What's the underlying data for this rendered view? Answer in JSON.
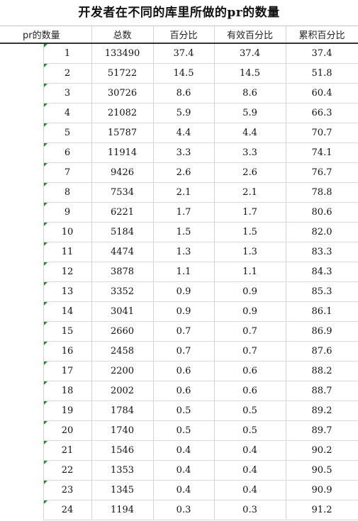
{
  "title": "开发者在不同的库里所做的pr的数量",
  "columns": [
    "pr的数量",
    "总数",
    "百分比",
    "有效百分比",
    "累积百分比"
  ],
  "rows": [
    [
      "1",
      "133490",
      "37.4",
      "37.4",
      "37.4"
    ],
    [
      "2",
      "51722",
      "14.5",
      "14.5",
      "51.8"
    ],
    [
      "3",
      "30726",
      "8.6",
      "8.6",
      "60.4"
    ],
    [
      "4",
      "21082",
      "5.9",
      "5.9",
      "66.3"
    ],
    [
      "5",
      "15787",
      "4.4",
      "4.4",
      "70.7"
    ],
    [
      "6",
      "11914",
      "3.3",
      "3.3",
      "74.1"
    ],
    [
      "7",
      "9426",
      "2.6",
      "2.6",
      "76.7"
    ],
    [
      "8",
      "7534",
      "2.1",
      "2.1",
      "78.8"
    ],
    [
      "9",
      "6221",
      "1.7",
      "1.7",
      "80.6"
    ],
    [
      "10",
      "5184",
      "1.5",
      "1.5",
      "82.0"
    ],
    [
      "11",
      "4474",
      "1.3",
      "1.3",
      "83.3"
    ],
    [
      "12",
      "3878",
      "1.1",
      "1.1",
      "84.3"
    ],
    [
      "13",
      "3352",
      "0.9",
      "0.9",
      "85.3"
    ],
    [
      "14",
      "3041",
      "0.9",
      "0.9",
      "86.1"
    ],
    [
      "15",
      "2660",
      "0.7",
      "0.7",
      "86.9"
    ],
    [
      "16",
      "2458",
      "0.7",
      "0.7",
      "87.6"
    ],
    [
      "17",
      "2200",
      "0.6",
      "0.6",
      "88.2"
    ],
    [
      "18",
      "2002",
      "0.6",
      "0.6",
      "88.7"
    ],
    [
      "19",
      "1784",
      "0.5",
      "0.5",
      "89.2"
    ],
    [
      "20",
      "1740",
      "0.5",
      "0.5",
      "89.7"
    ],
    [
      "21",
      "1546",
      "0.4",
      "0.4",
      "90.2"
    ],
    [
      "22",
      "1353",
      "0.4",
      "0.4",
      "90.5"
    ],
    [
      "23",
      "1345",
      "0.4",
      "0.4",
      "90.9"
    ],
    [
      "24",
      "1194",
      "0.3",
      "0.3",
      "91.2"
    ]
  ],
  "colors": {
    "header_rule": "#333333",
    "grid": "#d4d4d4",
    "cell_marker": "#1f8a2e"
  }
}
